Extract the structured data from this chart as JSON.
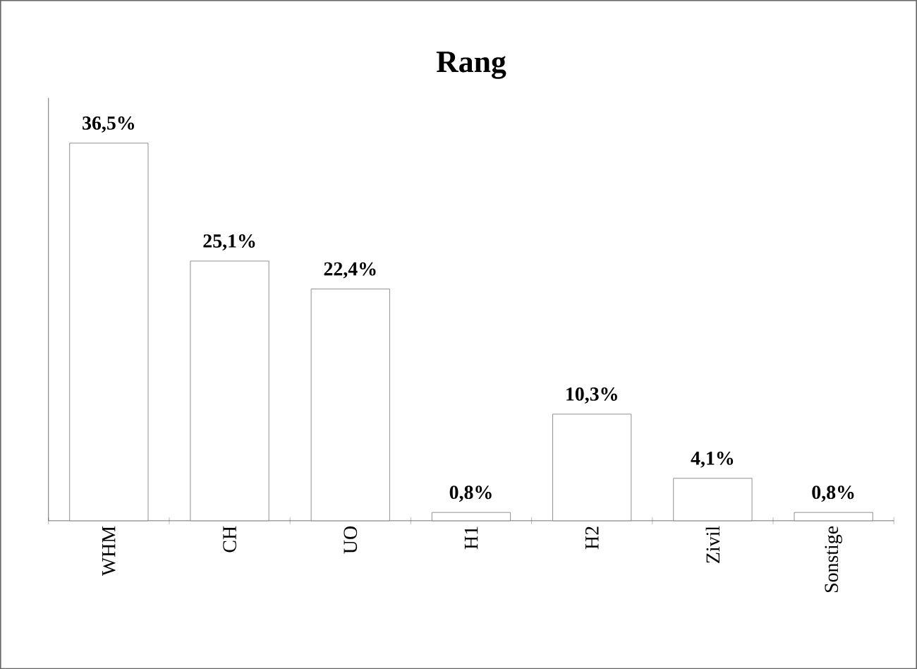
{
  "chart_data": {
    "type": "bar",
    "title": "Rang",
    "categories": [
      "WHM",
      "CH",
      "UO",
      "H1",
      "H2",
      "Zivil",
      "Sonstige"
    ],
    "values": [
      36.5,
      25.1,
      22.4,
      0.8,
      10.3,
      4.1,
      0.8
    ],
    "value_labels": [
      "36,5%",
      "25,1%",
      "22,4%",
      "0,8%",
      "10,3%",
      "4,1%",
      "0,8%"
    ],
    "color": "#ffffff"
  }
}
